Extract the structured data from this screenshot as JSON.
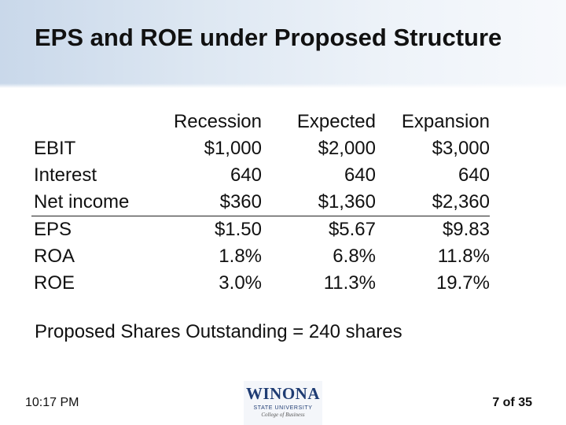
{
  "slide": {
    "title": "EPS and ROE under Proposed Structure",
    "footnote": "Proposed Shares Outstanding = 240 shares",
    "time": "10:17 PM",
    "page": "7 of 35"
  },
  "logo": {
    "main": "WINONA",
    "sub": "STATE UNIVERSITY",
    "tagline": "College of Business"
  },
  "table": {
    "columns": [
      "Recession",
      "Expected",
      "Expansion"
    ],
    "rows": [
      {
        "label": "EBIT",
        "values": [
          "$1,000",
          "$2,000",
          "$3,000"
        ]
      },
      {
        "label": "Interest",
        "values": [
          "640",
          "640",
          "640"
        ]
      },
      {
        "label": "Net income",
        "values": [
          "$360",
          "$1,360",
          "$2,360"
        ]
      },
      {
        "label": "EPS",
        "values": [
          "$1.50",
          "$5.67",
          "$9.83"
        ]
      },
      {
        "label": "ROA",
        "values": [
          "1.8%",
          "6.8%",
          "11.8%"
        ]
      },
      {
        "label": "ROE",
        "values": [
          "3.0%",
          "11.3%",
          "19.7%"
        ]
      }
    ]
  }
}
